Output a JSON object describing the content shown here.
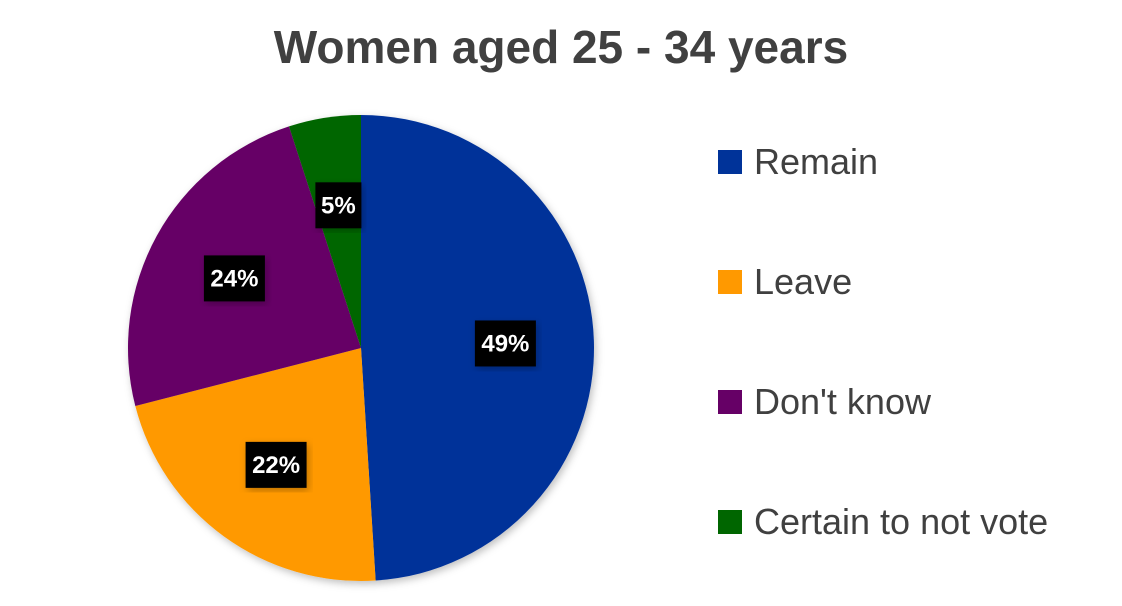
{
  "chart_data": {
    "type": "pie",
    "title": "Women aged 25 - 34 years",
    "categories": [
      "Remain",
      "Leave",
      "Don't know",
      "Certain to not vote"
    ],
    "values": [
      49,
      22,
      24,
      5
    ],
    "data_labels": [
      "49%",
      "22%",
      "24%",
      "5%"
    ],
    "colors": [
      "#003399",
      "#FF9900",
      "#660066",
      "#006600"
    ],
    "start_angle": "12 o'clock",
    "direction": "clockwise",
    "legend_position": "right"
  }
}
